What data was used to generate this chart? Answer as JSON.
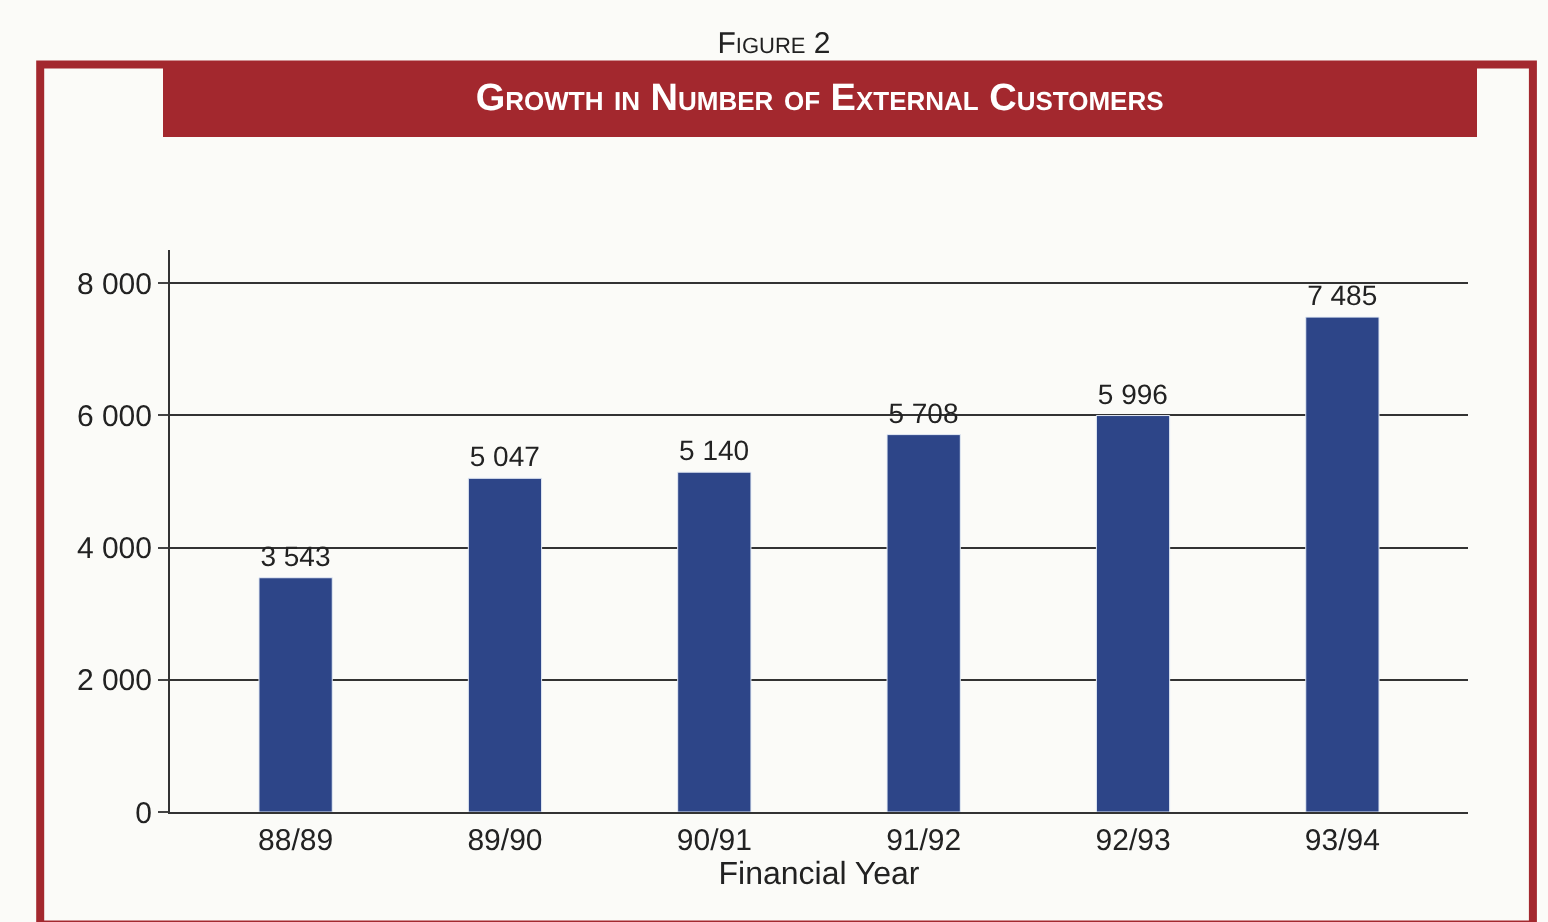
{
  "chart_data": {
    "type": "bar",
    "title": "Figure 2",
    "subtitle": "Growth in Number of External Customers",
    "xlabel": "Financial Year",
    "categories": [
      "88/89",
      "89/90",
      "90/91",
      "91/92",
      "92/93",
      "93/94"
    ],
    "values": [
      3543,
      5047,
      5140,
      5708,
      5996,
      7485
    ],
    "value_labels": [
      "3 543",
      "5 047",
      "5 140",
      "5 708",
      "5 996",
      "7 485"
    ],
    "color": "#2d4588",
    "ylim": [
      0,
      8500
    ],
    "yticks": [
      {
        "value": 0,
        "label": "0"
      },
      {
        "value": 2000,
        "label": "2 000"
      },
      {
        "value": 4000,
        "label": "4 000"
      },
      {
        "value": 6000,
        "label": "6 000"
      },
      {
        "value": 8000,
        "label": "8 000"
      }
    ],
    "grid": "y",
    "legend": false
  }
}
